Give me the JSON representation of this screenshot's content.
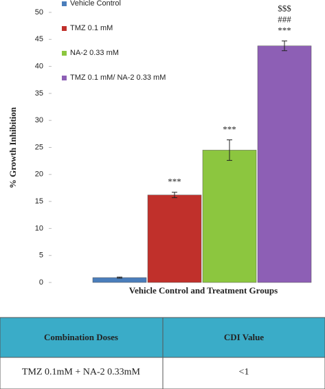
{
  "chart_data": {
    "type": "bar",
    "y_label": "% Growth Inhibition",
    "x_label": "Vehicle Control and Treatment Groups",
    "categories": [
      null
    ],
    "series": [
      {
        "name": "Vehicle Control",
        "color": "#4a7ebb",
        "values": [
          0.9
        ],
        "errors": [
          0.1
        ]
      },
      {
        "name": "TMZ 0.1 mM",
        "color": "#c0302b",
        "values": [
          16.2
        ],
        "errors": [
          0.5
        ],
        "labels": [
          "***"
        ]
      },
      {
        "name": "NA-2 0.33 mM",
        "color": "#8cc63f",
        "values": [
          24.5
        ],
        "errors": [
          1.9
        ],
        "labels": [
          "***"
        ]
      },
      {
        "name": "TMZ 0.1 mM/ NA-2 0.33 mM",
        "color": "#8d5fb5",
        "values": [
          43.8
        ],
        "errors": [
          0.9
        ],
        "labels": [
          "***",
          "###",
          "$$$"
        ]
      }
    ],
    "ylim": [
      0,
      50
    ],
    "yticks": [
      0,
      5,
      10,
      15,
      20,
      25,
      30,
      35,
      40,
      45,
      50
    ],
    "grid": false,
    "legend": "top-left"
  },
  "table": {
    "header": [
      "Combination Doses",
      "CDI Value"
    ],
    "rows": [
      [
        "TMZ 0.1mM + NA-2 0.33mM",
        "<1"
      ]
    ]
  }
}
